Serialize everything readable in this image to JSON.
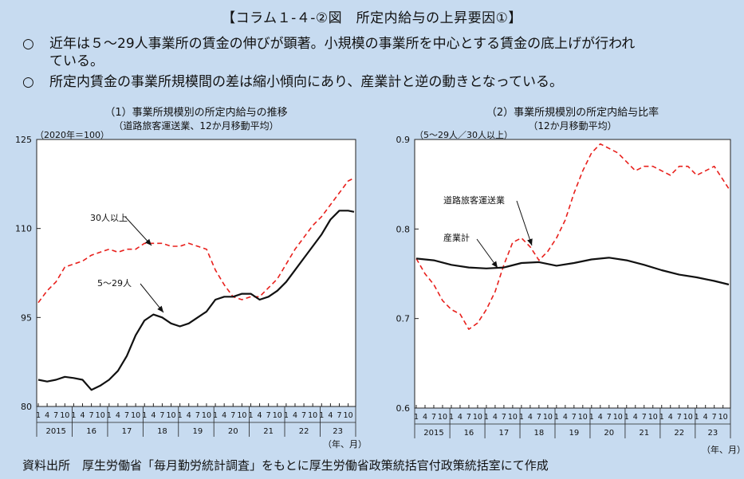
{
  "header": {
    "title": "【コラム１-４-②図　所定内給与の上昇要因①】",
    "bullet_mark": "○",
    "bullet1_line1": "近年は５～29人事業所の賃金の伸びが顕著。小規模の事業所を中心とする賃金の底上げが行われ",
    "bullet1_line2": "ている。",
    "bullet2": "所定内賃金の事業所規模間の差は縮小傾向にあり、産業計と逆の動きとなっている。"
  },
  "footer": {
    "source": "資料出所　厚生労働省「毎月勤労統計調査」をもとに厚生労働省政策統括官付政策統括室にて作成"
  },
  "chart_data": [
    {
      "type": "line",
      "title": "（1）事業所規模別の所定内給与の推移",
      "subtitle": "（道路旅客運送業、12か月移動平均）",
      "ylabel": "（2020年＝100）",
      "xlabel": "（年、月）",
      "ylim": [
        80,
        125
      ],
      "yticks": [
        80,
        95,
        110,
        125
      ],
      "month_ticks": [
        "1",
        "4",
        "7",
        "10"
      ],
      "years": [
        "2015",
        "16",
        "17",
        "18",
        "19",
        "20",
        "21",
        "22",
        "23"
      ],
      "series": [
        {
          "name": "30人以上",
          "color": "#e8201c",
          "dash": true,
          "x": [
            0,
            3,
            6,
            9,
            12,
            15,
            18,
            21,
            24,
            27,
            30,
            33,
            36,
            39,
            42,
            45,
            48,
            51,
            54,
            57,
            60,
            63,
            66,
            69,
            72,
            75,
            78,
            81,
            84,
            87,
            90,
            93,
            96,
            99,
            102,
            105,
            107
          ],
          "values": [
            97.5,
            99.5,
            101,
            103.5,
            104,
            104.5,
            105.5,
            106,
            106.5,
            106,
            106.5,
            106.5,
            107.5,
            107.5,
            107.5,
            107,
            107,
            107.5,
            107,
            106.5,
            103,
            100.5,
            98.5,
            98,
            98.5,
            98.5,
            100,
            101.5,
            104,
            106.5,
            108.5,
            110.5,
            112,
            114,
            116,
            118,
            118.5
          ]
        },
        {
          "name": "5～29人",
          "color": "#111111",
          "dash": false,
          "x": [
            0,
            3,
            6,
            9,
            12,
            15,
            18,
            21,
            24,
            27,
            30,
            33,
            36,
            39,
            42,
            45,
            48,
            51,
            54,
            57,
            60,
            63,
            66,
            69,
            72,
            75,
            78,
            81,
            84,
            87,
            90,
            93,
            96,
            99,
            102,
            105,
            107
          ],
          "values": [
            84.5,
            84.2,
            84.5,
            85,
            84.8,
            84.5,
            82.8,
            83.5,
            84.5,
            86,
            88.5,
            92,
            94.5,
            95.5,
            95,
            94,
            93.5,
            94,
            95,
            96,
            98,
            98.5,
            98.5,
            99,
            99,
            98,
            98.5,
            99.5,
            101,
            103,
            105,
            107,
            109,
            111.5,
            113,
            113,
            112.8
          ]
        }
      ],
      "annotations": [
        "30人以上",
        "5～29人"
      ]
    },
    {
      "type": "line",
      "title": "（2）事業所規模別の所定内給与比率",
      "subtitle": "（12か月移動平均）",
      "ylabel": "（5～29人／30人以上）",
      "xlabel": "（年、月）",
      "ylim": [
        0.6,
        0.9
      ],
      "yticks": [
        0.6,
        0.7,
        0.8,
        0.9
      ],
      "month_ticks": [
        "1",
        "4",
        "7",
        "10"
      ],
      "years": [
        "2015",
        "16",
        "17",
        "18",
        "19",
        "20",
        "21",
        "22",
        "23"
      ],
      "series": [
        {
          "name": "道路旅客運送業",
          "color": "#e8201c",
          "dash": true,
          "x": [
            0,
            3,
            6,
            9,
            12,
            15,
            18,
            21,
            24,
            27,
            30,
            33,
            36,
            39,
            42,
            45,
            48,
            51,
            54,
            57,
            60,
            63,
            66,
            69,
            72,
            75,
            78,
            81,
            84,
            87,
            90,
            93,
            96,
            99,
            102,
            105,
            107
          ],
          "values": [
            0.767,
            0.75,
            0.738,
            0.72,
            0.71,
            0.705,
            0.688,
            0.695,
            0.71,
            0.73,
            0.76,
            0.785,
            0.79,
            0.78,
            0.765,
            0.775,
            0.79,
            0.81,
            0.84,
            0.865,
            0.885,
            0.895,
            0.89,
            0.885,
            0.875,
            0.865,
            0.87,
            0.87,
            0.865,
            0.86,
            0.87,
            0.87,
            0.86,
            0.865,
            0.87,
            0.855,
            0.845
          ]
        },
        {
          "name": "産業計",
          "color": "#111111",
          "dash": false,
          "x": [
            0,
            6,
            12,
            18,
            24,
            30,
            36,
            42,
            48,
            54,
            60,
            66,
            72,
            78,
            84,
            90,
            96,
            102,
            107
          ],
          "values": [
            0.767,
            0.765,
            0.76,
            0.757,
            0.756,
            0.757,
            0.762,
            0.763,
            0.759,
            0.762,
            0.766,
            0.768,
            0.765,
            0.76,
            0.754,
            0.749,
            0.746,
            0.742,
            0.738
          ]
        }
      ],
      "annotations": [
        "道路旅客運送業",
        "産業計"
      ]
    }
  ]
}
